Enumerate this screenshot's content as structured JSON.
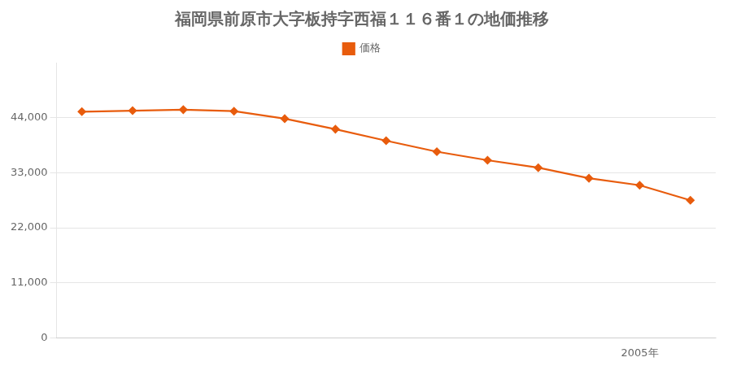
{
  "chart_data": {
    "type": "line",
    "title": "福岡県前原市大字板持字西福１１６番１の地価推移",
    "series": [
      {
        "name": "価格",
        "color": "#e85c0d",
        "marker": "diamond",
        "x": [
          1994,
          1995,
          1996,
          1997,
          1998,
          1999,
          2000,
          2001,
          2002,
          2003,
          2004,
          2005,
          2006
        ],
        "values": [
          45200,
          45400,
          45600,
          45300,
          43800,
          41700,
          39400,
          37200,
          35500,
          34000,
          31900,
          30500,
          27500
        ]
      }
    ],
    "xlim": [
      1993.5,
      2006.5
    ],
    "xticks": [
      {
        "value": 2005,
        "label": "2005年"
      }
    ],
    "ylim": [
      0,
      55000
    ],
    "yticks": [
      0,
      {
        "value": 11000,
        "label": "11,000"
      },
      {
        "value": 22000,
        "label": "22,000"
      },
      {
        "value": 33000,
        "label": "33,000"
      },
      {
        "value": 44000,
        "label": "44,000"
      }
    ],
    "grid": "y",
    "legend": "top"
  }
}
